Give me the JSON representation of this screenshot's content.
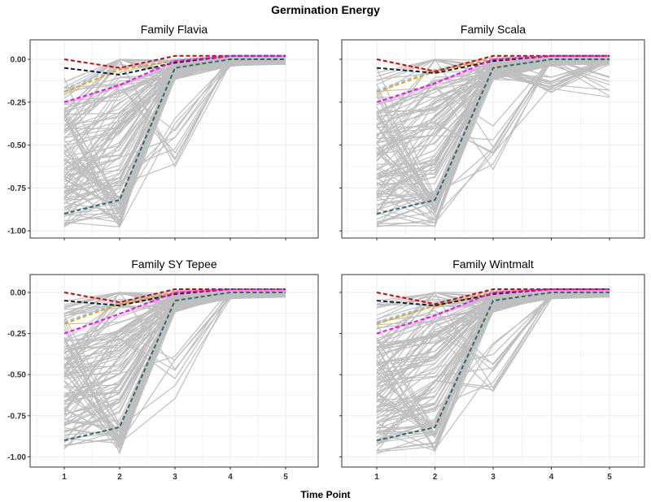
{
  "chart_data": {
    "type": "line",
    "title": "Germination Energy",
    "xlabel": "Time Point",
    "ylabel": "",
    "x": [
      1,
      2,
      3,
      4,
      5
    ],
    "ylim": [
      -1.05,
      0.1
    ],
    "yticks": [
      0.0,
      -0.25,
      -0.5,
      -0.75,
      -1.0
    ],
    "ytick_labels": [
      "0.00",
      "-0.25",
      "-0.50",
      "-0.75",
      "-1.00"
    ],
    "xtick_labels": [
      "1",
      "2",
      "3",
      "4",
      "5"
    ],
    "grid": true,
    "background_color": "#bfbfbf",
    "panels": [
      {
        "title": "Family Flavia",
        "highlight_series": [
          {
            "color": "#e8a010",
            "values": [
              -0.19,
              -0.06,
              -0.01,
              0.02,
              0.02
            ]
          },
          {
            "color": "#9ecae1",
            "values": [
              -0.17,
              -0.05,
              0.0,
              0.02,
              0.02
            ]
          },
          {
            "color": "#dd0000",
            "values": [
              0.0,
              -0.05,
              0.02,
              0.02,
              0.02
            ]
          },
          {
            "color": "#0b1f3a",
            "values": [
              -0.05,
              -0.09,
              -0.02,
              0.02,
              0.02
            ]
          },
          {
            "color": "#ff00ff",
            "values": [
              -0.25,
              -0.15,
              -0.01,
              0.02,
              0.02
            ]
          },
          {
            "color": "#2f6b6b",
            "values": [
              -0.9,
              -0.82,
              -0.05,
              0.0,
              0.0
            ]
          }
        ]
      },
      {
        "title": "Family Scala",
        "highlight_series": [
          {
            "color": "#e8a010",
            "values": [
              -0.19,
              -0.07,
              0.0,
              0.02,
              0.02
            ]
          },
          {
            "color": "#9ecae1",
            "values": [
              -0.18,
              -0.06,
              0.01,
              0.02,
              0.02
            ]
          },
          {
            "color": "#dd0000",
            "values": [
              0.0,
              -0.07,
              0.02,
              0.02,
              0.02
            ]
          },
          {
            "color": "#0b1f3a",
            "values": [
              -0.05,
              -0.08,
              -0.01,
              0.02,
              0.02
            ]
          },
          {
            "color": "#ff00ff",
            "values": [
              -0.25,
              -0.14,
              0.0,
              0.02,
              0.02
            ]
          },
          {
            "color": "#2f6b6b",
            "values": [
              -0.9,
              -0.82,
              -0.05,
              0.0,
              0.0
            ]
          }
        ]
      },
      {
        "title": "Family SY Tepee",
        "highlight_series": [
          {
            "color": "#e8a010",
            "values": [
              -0.19,
              -0.07,
              0.0,
              0.02,
              0.02
            ]
          },
          {
            "color": "#9ecae1",
            "values": [
              -0.18,
              -0.06,
              0.01,
              0.02,
              0.02
            ]
          },
          {
            "color": "#dd0000",
            "values": [
              0.0,
              -0.06,
              0.02,
              0.02,
              0.02
            ]
          },
          {
            "color": "#0b1f3a",
            "values": [
              -0.05,
              -0.08,
              -0.01,
              0.02,
              0.02
            ]
          },
          {
            "color": "#ff00ff",
            "values": [
              -0.25,
              -0.13,
              0.0,
              0.02,
              0.02
            ]
          },
          {
            "color": "#2f6b6b",
            "values": [
              -0.9,
              -0.82,
              -0.05,
              0.0,
              0.0
            ]
          }
        ]
      },
      {
        "title": "Family Wintmalt",
        "highlight_series": [
          {
            "color": "#e8a010",
            "values": [
              -0.19,
              -0.08,
              0.0,
              0.02,
              0.02
            ]
          },
          {
            "color": "#9ecae1",
            "values": [
              -0.18,
              -0.07,
              0.01,
              0.02,
              0.02
            ]
          },
          {
            "color": "#dd0000",
            "values": [
              0.0,
              -0.07,
              0.02,
              0.02,
              0.02
            ]
          },
          {
            "color": "#0b1f3a",
            "values": [
              -0.05,
              -0.08,
              -0.01,
              0.02,
              0.02
            ]
          },
          {
            "color": "#ff00ff",
            "values": [
              -0.25,
              -0.14,
              0.0,
              0.02,
              0.02
            ]
          },
          {
            "color": "#2f6b6b",
            "values": [
              -0.9,
              -0.82,
              -0.05,
              0.0,
              0.0
            ]
          }
        ]
      }
    ]
  }
}
